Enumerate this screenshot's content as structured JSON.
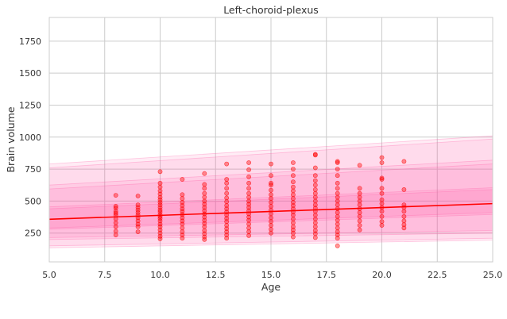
{
  "chart_data": {
    "type": "scatter",
    "title": "Left-choroid-plexus",
    "xlabel": "Age",
    "ylabel": "Brain volume",
    "xlim": [
      5.0,
      25.0
    ],
    "ylim": [
      25,
      1935
    ],
    "x_ticks": [
      5.0,
      7.5,
      10.0,
      12.5,
      15.0,
      17.5,
      20.0,
      22.5,
      25.0
    ],
    "x_tick_labels": [
      "5.0",
      "7.5",
      "10.0",
      "12.5",
      "15.0",
      "17.5",
      "20.0",
      "22.5",
      "25.0"
    ],
    "y_ticks": [
      250,
      500,
      750,
      1000,
      1250,
      1500,
      1750
    ],
    "y_tick_labels": [
      "250",
      "500",
      "750",
      "1000",
      "1250",
      "1500",
      "1750"
    ],
    "grid": true,
    "legend": "none",
    "colors": {
      "points": "#ff0000",
      "fit_line": "#ff0000",
      "band": "#ff4fa0",
      "grid": "#cccccc",
      "background": "#ffffff"
    },
    "fit_line": {
      "x": [
        5.0,
        25.0
      ],
      "y": [
        358,
        480
      ]
    },
    "bands": [
      {
        "level": "outer",
        "lower": [
          [
            5.0,
            135
          ],
          [
            25.0,
            195
          ]
        ],
        "upper": [
          [
            5.0,
            790
          ],
          [
            25.0,
            1010
          ]
        ]
      },
      {
        "level": "outer",
        "lower": [
          [
            5.0,
            150
          ],
          [
            25.0,
            210
          ]
        ],
        "upper": [
          [
            5.0,
            760
          ],
          [
            25.0,
            985
          ]
        ]
      },
      {
        "level": "middle",
        "lower": [
          [
            5.0,
            200
          ],
          [
            25.0,
            250
          ]
        ],
        "upper": [
          [
            5.0,
            625
          ],
          [
            25.0,
            820
          ]
        ]
      },
      {
        "level": "middle",
        "lower": [
          [
            5.0,
            215
          ],
          [
            25.0,
            270
          ]
        ],
        "upper": [
          [
            5.0,
            595
          ],
          [
            25.0,
            790
          ]
        ]
      },
      {
        "level": "inner",
        "lower": [
          [
            5.0,
            280
          ],
          [
            25.0,
            395
          ]
        ],
        "upper": [
          [
            5.0,
            455
          ],
          [
            25.0,
            605
          ]
        ]
      },
      {
        "level": "inner",
        "lower": [
          [
            5.0,
            290
          ],
          [
            25.0,
            410
          ]
        ],
        "upper": [
          [
            5.0,
            440
          ],
          [
            25.0,
            590
          ]
        ]
      }
    ],
    "points": [
      [
        8,
        235
      ],
      [
        8,
        265
      ],
      [
        8,
        300
      ],
      [
        8,
        330
      ],
      [
        8,
        360
      ],
      [
        8,
        390
      ],
      [
        8,
        405
      ],
      [
        8,
        420
      ],
      [
        8,
        445
      ],
      [
        8,
        460
      ],
      [
        8,
        545
      ],
      [
        9,
        260
      ],
      [
        9,
        300
      ],
      [
        9,
        320
      ],
      [
        9,
        345
      ],
      [
        9,
        370
      ],
      [
        9,
        390
      ],
      [
        9,
        410
      ],
      [
        9,
        430
      ],
      [
        9,
        450
      ],
      [
        9,
        470
      ],
      [
        9,
        540
      ],
      [
        10,
        205
      ],
      [
        10,
        225
      ],
      [
        10,
        250
      ],
      [
        10,
        275
      ],
      [
        10,
        300
      ],
      [
        10,
        320
      ],
      [
        10,
        345
      ],
      [
        10,
        365
      ],
      [
        10,
        380
      ],
      [
        10,
        395
      ],
      [
        10,
        415
      ],
      [
        10,
        430
      ],
      [
        10,
        450
      ],
      [
        10,
        470
      ],
      [
        10,
        490
      ],
      [
        10,
        510
      ],
      [
        10,
        530
      ],
      [
        10,
        555
      ],
      [
        10,
        580
      ],
      [
        10,
        610
      ],
      [
        10,
        640
      ],
      [
        10,
        730
      ],
      [
        11,
        210
      ],
      [
        11,
        235
      ],
      [
        11,
        260
      ],
      [
        11,
        290
      ],
      [
        11,
        320
      ],
      [
        11,
        345
      ],
      [
        11,
        370
      ],
      [
        11,
        395
      ],
      [
        11,
        420
      ],
      [
        11,
        440
      ],
      [
        11,
        465
      ],
      [
        11,
        490
      ],
      [
        11,
        520
      ],
      [
        11,
        550
      ],
      [
        11,
        670
      ],
      [
        12,
        200
      ],
      [
        12,
        220
      ],
      [
        12,
        245
      ],
      [
        12,
        270
      ],
      [
        12,
        300
      ],
      [
        12,
        325
      ],
      [
        12,
        350
      ],
      [
        12,
        375
      ],
      [
        12,
        400
      ],
      [
        12,
        425
      ],
      [
        12,
        450
      ],
      [
        12,
        475
      ],
      [
        12,
        500
      ],
      [
        12,
        530
      ],
      [
        12,
        560
      ],
      [
        12,
        600
      ],
      [
        12,
        630
      ],
      [
        12,
        715
      ],
      [
        13,
        210
      ],
      [
        13,
        235
      ],
      [
        13,
        260
      ],
      [
        13,
        285
      ],
      [
        13,
        310
      ],
      [
        13,
        340
      ],
      [
        13,
        365
      ],
      [
        13,
        390
      ],
      [
        13,
        415
      ],
      [
        13,
        440
      ],
      [
        13,
        465
      ],
      [
        13,
        495
      ],
      [
        13,
        525
      ],
      [
        13,
        560
      ],
      [
        13,
        600
      ],
      [
        13,
        640
      ],
      [
        13,
        670
      ],
      [
        13,
        790
      ],
      [
        14,
        230
      ],
      [
        14,
        260
      ],
      [
        14,
        290
      ],
      [
        14,
        320
      ],
      [
        14,
        350
      ],
      [
        14,
        375
      ],
      [
        14,
        400
      ],
      [
        14,
        425
      ],
      [
        14,
        450
      ],
      [
        14,
        475
      ],
      [
        14,
        500
      ],
      [
        14,
        530
      ],
      [
        14,
        560
      ],
      [
        14,
        600
      ],
      [
        14,
        640
      ],
      [
        14,
        690
      ],
      [
        14,
        745
      ],
      [
        14,
        800
      ],
      [
        15,
        250
      ],
      [
        15,
        280
      ],
      [
        15,
        310
      ],
      [
        15,
        340
      ],
      [
        15,
        370
      ],
      [
        15,
        400
      ],
      [
        15,
        430
      ],
      [
        15,
        460
      ],
      [
        15,
        490
      ],
      [
        15,
        520
      ],
      [
        15,
        550
      ],
      [
        15,
        585
      ],
      [
        15,
        625
      ],
      [
        15,
        640
      ],
      [
        15,
        700
      ],
      [
        15,
        790
      ],
      [
        16,
        220
      ],
      [
        16,
        250
      ],
      [
        16,
        275
      ],
      [
        16,
        300
      ],
      [
        16,
        330
      ],
      [
        16,
        360
      ],
      [
        16,
        390
      ],
      [
        16,
        415
      ],
      [
        16,
        440
      ],
      [
        16,
        465
      ],
      [
        16,
        490
      ],
      [
        16,
        520
      ],
      [
        16,
        550
      ],
      [
        16,
        580
      ],
      [
        16,
        610
      ],
      [
        16,
        650
      ],
      [
        16,
        700
      ],
      [
        16,
        750
      ],
      [
        16,
        800
      ],
      [
        17,
        215
      ],
      [
        17,
        245
      ],
      [
        17,
        270
      ],
      [
        17,
        300
      ],
      [
        17,
        330
      ],
      [
        17,
        360
      ],
      [
        17,
        390
      ],
      [
        17,
        420
      ],
      [
        17,
        445
      ],
      [
        17,
        470
      ],
      [
        17,
        500
      ],
      [
        17,
        530
      ],
      [
        17,
        560
      ],
      [
        17,
        590
      ],
      [
        17,
        625
      ],
      [
        17,
        660
      ],
      [
        17,
        700
      ],
      [
        17,
        760
      ],
      [
        17,
        860
      ],
      [
        17,
        865
      ],
      [
        18,
        150
      ],
      [
        18,
        210
      ],
      [
        18,
        235
      ],
      [
        18,
        260
      ],
      [
        18,
        290
      ],
      [
        18,
        320
      ],
      [
        18,
        350
      ],
      [
        18,
        380
      ],
      [
        18,
        410
      ],
      [
        18,
        440
      ],
      [
        18,
        470
      ],
      [
        18,
        500
      ],
      [
        18,
        530
      ],
      [
        18,
        560
      ],
      [
        18,
        600
      ],
      [
        18,
        640
      ],
      [
        18,
        700
      ],
      [
        18,
        750
      ],
      [
        18,
        800
      ],
      [
        18,
        810
      ],
      [
        19,
        275
      ],
      [
        19,
        310
      ],
      [
        19,
        345
      ],
      [
        19,
        380
      ],
      [
        19,
        410
      ],
      [
        19,
        440
      ],
      [
        19,
        470
      ],
      [
        19,
        500
      ],
      [
        19,
        530
      ],
      [
        19,
        560
      ],
      [
        19,
        600
      ],
      [
        19,
        780
      ],
      [
        20,
        310
      ],
      [
        20,
        340
      ],
      [
        20,
        380
      ],
      [
        20,
        420
      ],
      [
        20,
        450
      ],
      [
        20,
        480
      ],
      [
        20,
        510
      ],
      [
        20,
        560
      ],
      [
        20,
        600
      ],
      [
        20,
        670
      ],
      [
        20,
        680
      ],
      [
        20,
        800
      ],
      [
        20,
        840
      ],
      [
        21,
        290
      ],
      [
        21,
        315
      ],
      [
        21,
        345
      ],
      [
        21,
        380
      ],
      [
        21,
        420
      ],
      [
        21,
        450
      ],
      [
        21,
        470
      ],
      [
        21,
        590
      ],
      [
        21,
        810
      ]
    ]
  }
}
